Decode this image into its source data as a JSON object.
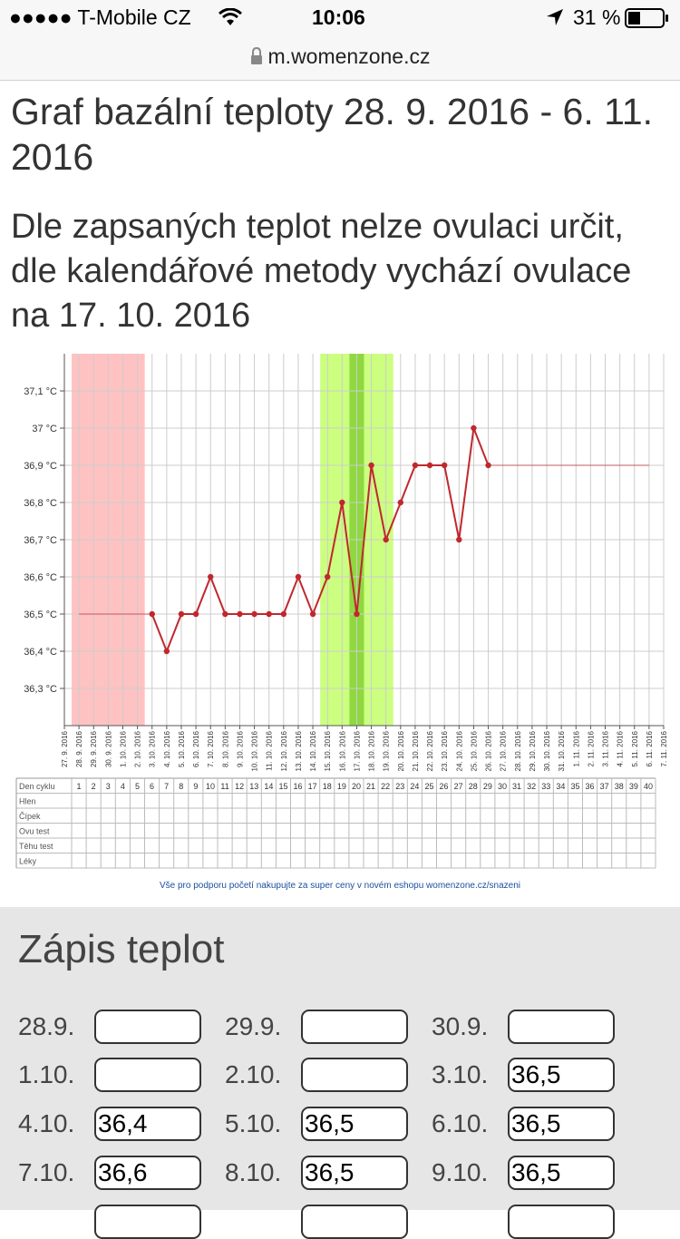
{
  "status_bar": {
    "carrier": "●●●●● T-Mobile CZ",
    "time": "10:06",
    "battery": "31 %"
  },
  "browser": {
    "url": "m.womenzone.cz"
  },
  "page": {
    "title": "Graf bazální teploty 28. 9. 2016 - 6. 11. 2016",
    "subtitle": "Dle zapsaných teplot nelze ovulaci určit, dle kalendářové metody vychází ovulace na 17. 10. 2016"
  },
  "chart_data": {
    "type": "line",
    "x": [
      "27.9.2016",
      "28.9.2016",
      "29.9.2016",
      "30.9.2016",
      "1.10.2016",
      "2.10.2016",
      "3.10.2016",
      "4.10.2016",
      "5.10.2016",
      "6.10.2016",
      "7.10.2016",
      "8.10.2016",
      "9.10.2016",
      "10.10.2016",
      "11.10.2016",
      "12.10.2016",
      "13.10.2016",
      "14.10.2016",
      "15.10.2016",
      "16.10.2016",
      "17.10.2016",
      "18.10.2016",
      "19.10.2016",
      "20.10.2016",
      "21.10.2016",
      "22.10.2016",
      "23.10.2016",
      "24.10.2016",
      "25.10.2016",
      "26.10.2016",
      "27.10.2016",
      "28.10.2016",
      "29.10.2016",
      "30.10.2016",
      "31.10.2016",
      "1.11.2016",
      "2.11.2016",
      "3.11.2016",
      "4.11.2016",
      "5.11.2016",
      "6.11.2016",
      "7.11.2016"
    ],
    "y_ticks": [
      "36,3 °C",
      "36,4 °C",
      "36,5 °C",
      "36,6 °C",
      "36,7 °C",
      "36,8 °C",
      "36,9 °C",
      "37 °C",
      "37,1 °C"
    ],
    "ylim": [
      36.2,
      37.2
    ],
    "measured": [
      {
        "date": "3.10.2016",
        "value": 36.5
      },
      {
        "date": "4.10.2016",
        "value": 36.4
      },
      {
        "date": "5.10.2016",
        "value": 36.5
      },
      {
        "date": "6.10.2016",
        "value": 36.5
      },
      {
        "date": "7.10.2016",
        "value": 36.6
      },
      {
        "date": "8.10.2016",
        "value": 36.5
      },
      {
        "date": "9.10.2016",
        "value": 36.5
      },
      {
        "date": "10.10.2016",
        "value": 36.5
      },
      {
        "date": "11.10.2016",
        "value": 36.5
      },
      {
        "date": "12.10.2016",
        "value": 36.5
      },
      {
        "date": "13.10.2016",
        "value": 36.6
      },
      {
        "date": "14.10.2016",
        "value": 36.5
      },
      {
        "date": "15.10.2016",
        "value": 36.6
      },
      {
        "date": "16.10.2016",
        "value": 36.8
      },
      {
        "date": "17.10.2016",
        "value": 36.5
      },
      {
        "date": "18.10.2016",
        "value": 36.9
      },
      {
        "date": "19.10.2016",
        "value": 36.7
      },
      {
        "date": "20.10.2016",
        "value": 36.8
      },
      {
        "date": "21.10.2016",
        "value": 36.9
      },
      {
        "date": "22.10.2016",
        "value": 36.9
      },
      {
        "date": "23.10.2016",
        "value": 36.9
      },
      {
        "date": "24.10.2016",
        "value": 36.7
      },
      {
        "date": "25.10.2016",
        "value": 37.0
      },
      {
        "date": "26.10.2016",
        "value": 36.9
      }
    ],
    "gap_fill_before": {
      "from": "28.9.2016",
      "to": "3.10.2016",
      "value": 36.5
    },
    "gap_fill_after": {
      "from": "26.10.2016",
      "to": "6.11.2016",
      "value": 36.9
    },
    "menstruation_days": {
      "from": "28.9.2016",
      "to": "2.10.2016"
    },
    "fertile_window": {
      "from": "15.10.2016",
      "to": "19.10.2016"
    },
    "ovulation_day": "17.10.2016",
    "colors": {
      "line": "#c0282d",
      "menstruation": "#ffc2c2",
      "fertile": "#ccff80",
      "ovulation": "#8fd840",
      "grid": "#cccccc"
    }
  },
  "table": {
    "row_labels": [
      "Den cyklu",
      "Hlen",
      "Čípek",
      "Ovu test",
      "Těhu test",
      "Léky"
    ],
    "cycle_days": [
      "1",
      "2",
      "3",
      "4",
      "5",
      "6",
      "7",
      "8",
      "9",
      "10",
      "11",
      "12",
      "13",
      "14",
      "15",
      "16",
      "17",
      "18",
      "19",
      "20",
      "21",
      "22",
      "23",
      "24",
      "25",
      "26",
      "27",
      "28",
      "29",
      "30",
      "31",
      "32",
      "33",
      "34",
      "35",
      "36",
      "37",
      "38",
      "39",
      "40"
    ]
  },
  "promo": "Vše pro podporu početí nakupujte za super ceny v novém eshopu womenzone.cz/snazeni",
  "form": {
    "title": "Zápis teplot",
    "entries": [
      {
        "label": "28.9.",
        "value": ""
      },
      {
        "label": "29.9.",
        "value": ""
      },
      {
        "label": "30.9.",
        "value": ""
      },
      {
        "label": "1.10.",
        "value": ""
      },
      {
        "label": "2.10.",
        "value": ""
      },
      {
        "label": "3.10.",
        "value": "36,5"
      },
      {
        "label": "4.10.",
        "value": "36,4"
      },
      {
        "label": "5.10.",
        "value": "36,5"
      },
      {
        "label": "6.10.",
        "value": "36,5"
      },
      {
        "label": "7.10.",
        "value": "36,6"
      },
      {
        "label": "8.10.",
        "value": "36,5"
      },
      {
        "label": "9.10.",
        "value": "36,5"
      }
    ]
  }
}
